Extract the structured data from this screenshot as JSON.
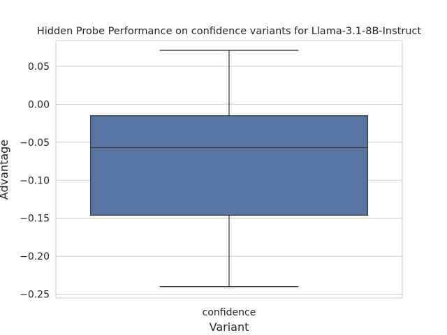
{
  "chart_data": {
    "type": "box",
    "title": "Hidden Probe Performance on confidence variants for Llama-3.1-8B-Instruct",
    "xlabel": "Variant",
    "ylabel": "Advantage",
    "categories": [
      "confidence"
    ],
    "boxes": [
      {
        "category": "confidence",
        "whisker_low": -0.24,
        "q1": -0.146,
        "median": -0.057,
        "q3": -0.015,
        "whisker_high": 0.071
      }
    ],
    "ylim": [
      -0.255,
      0.084
    ],
    "yticks": [
      0.05,
      0.0,
      -0.05,
      -0.1,
      -0.15,
      -0.2,
      -0.25
    ],
    "ytick_labels": [
      "0.05",
      "0.00",
      "−0.05",
      "−0.10",
      "−0.15",
      "−0.20",
      "−0.25"
    ],
    "grid": true,
    "colors": {
      "box_fill": "#5875a4",
      "line": "#3d3d3d",
      "grid": "#cccccc",
      "frame": "#cccccc"
    }
  }
}
